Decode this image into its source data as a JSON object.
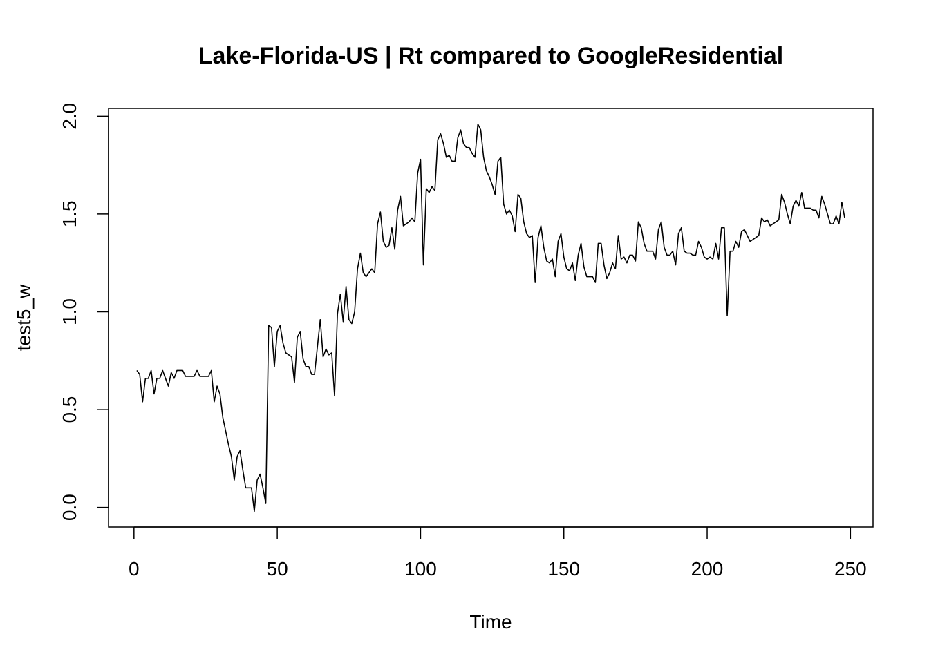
{
  "chart_data": {
    "type": "line",
    "title": "Lake-Florida-US | Rt compared to GoogleResidential",
    "xlabel": "Time",
    "ylabel": "test5_w",
    "color": "#000000",
    "x": [
      1,
      2,
      3,
      4,
      5,
      6,
      7,
      8,
      9,
      10,
      11,
      12,
      13,
      14,
      15,
      16,
      17,
      18,
      19,
      20,
      21,
      22,
      23,
      24,
      25,
      26,
      27,
      28,
      29,
      30,
      31,
      32,
      33,
      34,
      35,
      36,
      37,
      38,
      39,
      40,
      41,
      42,
      43,
      44,
      45,
      46,
      47,
      48,
      49,
      50,
      51,
      52,
      53,
      54,
      55,
      56,
      57,
      58,
      59,
      60,
      61,
      62,
      63,
      64,
      65,
      66,
      67,
      68,
      69,
      70,
      71,
      72,
      73,
      74,
      75,
      76,
      77,
      78,
      79,
      80,
      81,
      82,
      83,
      84,
      85,
      86,
      87,
      88,
      89,
      90,
      91,
      92,
      93,
      94,
      95,
      96,
      97,
      98,
      99,
      100,
      101,
      102,
      103,
      104,
      105,
      106,
      107,
      108,
      109,
      110,
      111,
      112,
      113,
      114,
      115,
      116,
      117,
      118,
      119,
      120,
      121,
      122,
      123,
      124,
      125,
      126,
      127,
      128,
      129,
      130,
      131,
      132,
      133,
      134,
      135,
      136,
      137,
      138,
      139,
      140,
      141,
      142,
      143,
      144,
      145,
      146,
      147,
      148,
      149,
      150,
      151,
      152,
      153,
      154,
      155,
      156,
      157,
      158,
      159,
      160,
      161,
      162,
      163,
      164,
      165,
      166,
      167,
      168,
      169,
      170,
      171,
      172,
      173,
      174,
      175,
      176,
      177,
      178,
      179,
      180,
      181,
      182,
      183,
      184,
      185,
      186,
      187,
      188,
      189,
      190,
      191,
      192,
      193,
      194,
      195,
      196,
      197,
      198,
      199,
      200,
      201,
      202,
      203,
      204,
      205,
      206,
      207,
      208,
      209,
      210,
      211,
      212,
      213,
      214,
      215,
      216,
      217,
      218,
      219,
      220,
      221,
      222,
      223,
      224,
      225,
      226,
      227,
      228,
      229,
      230,
      231,
      232,
      233,
      234,
      235,
      236,
      237,
      238,
      239,
      240,
      241,
      242,
      243,
      244,
      245,
      246,
      247,
      248
    ],
    "values": [
      0.7,
      0.68,
      0.54,
      0.66,
      0.66,
      0.7,
      0.58,
      0.66,
      0.66,
      0.7,
      0.66,
      0.62,
      0.69,
      0.66,
      0.7,
      0.7,
      0.7,
      0.67,
      0.67,
      0.67,
      0.67,
      0.7,
      0.67,
      0.67,
      0.67,
      0.67,
      0.7,
      0.54,
      0.62,
      0.58,
      0.46,
      0.39,
      0.32,
      0.26,
      0.14,
      0.26,
      0.29,
      0.19,
      0.1,
      0.1,
      0.1,
      -0.02,
      0.14,
      0.17,
      0.1,
      0.02,
      0.93,
      0.92,
      0.72,
      0.9,
      0.93,
      0.84,
      0.79,
      0.78,
      0.77,
      0.64,
      0.87,
      0.9,
      0.76,
      0.72,
      0.72,
      0.68,
      0.68,
      0.82,
      0.96,
      0.77,
      0.81,
      0.78,
      0.79,
      0.57,
      0.99,
      1.09,
      0.95,
      1.13,
      0.96,
      0.94,
      1.0,
      1.22,
      1.3,
      1.2,
      1.18,
      1.2,
      1.22,
      1.2,
      1.45,
      1.51,
      1.36,
      1.33,
      1.34,
      1.43,
      1.32,
      1.52,
      1.59,
      1.44,
      1.45,
      1.46,
      1.48,
      1.46,
      1.71,
      1.78,
      1.24,
      1.63,
      1.61,
      1.64,
      1.62,
      1.88,
      1.91,
      1.86,
      1.79,
      1.8,
      1.77,
      1.77,
      1.89,
      1.93,
      1.86,
      1.84,
      1.84,
      1.81,
      1.79,
      1.96,
      1.93,
      1.79,
      1.72,
      1.69,
      1.65,
      1.6,
      1.77,
      1.79,
      1.55,
      1.5,
      1.52,
      1.49,
      1.41,
      1.6,
      1.58,
      1.46,
      1.4,
      1.38,
      1.39,
      1.15,
      1.38,
      1.44,
      1.33,
      1.26,
      1.25,
      1.27,
      1.18,
      1.36,
      1.4,
      1.28,
      1.22,
      1.21,
      1.25,
      1.16,
      1.29,
      1.35,
      1.23,
      1.18,
      1.18,
      1.18,
      1.15,
      1.35,
      1.35,
      1.24,
      1.17,
      1.2,
      1.25,
      1.22,
      1.39,
      1.27,
      1.28,
      1.25,
      1.29,
      1.29,
      1.26,
      1.46,
      1.43,
      1.35,
      1.31,
      1.31,
      1.31,
      1.27,
      1.42,
      1.46,
      1.33,
      1.29,
      1.29,
      1.31,
      1.24,
      1.4,
      1.43,
      1.31,
      1.3,
      1.3,
      1.29,
      1.29,
      1.36,
      1.33,
      1.28,
      1.27,
      1.28,
      1.27,
      1.35,
      1.27,
      1.43,
      1.43,
      0.98,
      1.31,
      1.31,
      1.36,
      1.33,
      1.41,
      1.42,
      1.39,
      1.36,
      1.37,
      1.38,
      1.39,
      1.48,
      1.46,
      1.47,
      1.44,
      1.45,
      1.46,
      1.47,
      1.6,
      1.56,
      1.5,
      1.45,
      1.54,
      1.57,
      1.54,
      1.61,
      1.53,
      1.53,
      1.53,
      1.52,
      1.52,
      1.48,
      1.59,
      1.55,
      1.5,
      1.45,
      1.45,
      1.49,
      1.45,
      1.56,
      1.48
    ],
    "xlim": [
      -8.88,
      257.88
    ],
    "ylim": [
      -0.1,
      2.04
    ],
    "xticks": [
      0,
      50,
      100,
      150,
      200,
      250
    ],
    "yticks": [
      {
        "value": 0,
        "label": "0.0"
      },
      {
        "value": 0.5,
        "label": "0.5"
      },
      {
        "value": 1,
        "label": "1.0"
      },
      {
        "value": 1.5,
        "label": "1.5"
      },
      {
        "value": 2,
        "label": "2.0"
      }
    ]
  }
}
